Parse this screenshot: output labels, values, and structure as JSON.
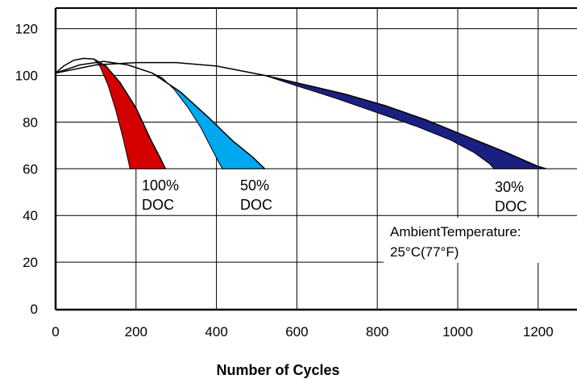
{
  "chart_data": {
    "type": "area",
    "title": "",
    "xlabel": "Number of Cycles",
    "ylabel": "",
    "xlim": [
      0,
      1300
    ],
    "ylim": [
      0,
      120
    ],
    "xticks": [
      0,
      200,
      400,
      600,
      800,
      1000,
      1200
    ],
    "yticks": [
      0,
      20,
      40,
      60,
      80,
      100,
      120
    ],
    "grid": true,
    "bands": [
      {
        "label": "100%\nDOC",
        "color": "#d40000",
        "upper": [
          [
            0,
            101
          ],
          [
            20,
            104
          ],
          [
            45,
            106.5
          ],
          [
            70,
            107.3
          ],
          [
            95,
            107
          ],
          [
            125,
            104
          ],
          [
            160,
            97
          ],
          [
            200,
            86
          ],
          [
            235,
            73
          ],
          [
            262,
            64
          ],
          [
            273,
            60
          ]
        ],
        "lower": [
          [
            95,
            107
          ],
          [
            110,
            104
          ],
          [
            130,
            96
          ],
          [
            150,
            85
          ],
          [
            168,
            73
          ],
          [
            180,
            64
          ],
          [
            185,
            60
          ]
        ]
      },
      {
        "label": "50%\nDOC",
        "color": "#00a8f0",
        "upper": [
          [
            0,
            101
          ],
          [
            60,
            104.5
          ],
          [
            120,
            106
          ],
          [
            180,
            104.5
          ],
          [
            240,
            101
          ],
          [
            310,
            93
          ],
          [
            380,
            82
          ],
          [
            440,
            72
          ],
          [
            490,
            65
          ],
          [
            520,
            60
          ]
        ],
        "lower": [
          [
            240,
            101
          ],
          [
            265,
            99
          ],
          [
            295,
            94
          ],
          [
            330,
            86
          ],
          [
            360,
            78
          ],
          [
            390,
            68
          ],
          [
            408,
            62
          ],
          [
            415,
            60
          ]
        ]
      },
      {
        "label": "30%\nDOC",
        "color": "#1a2080",
        "upper": [
          [
            0,
            101
          ],
          [
            100,
            104.5
          ],
          [
            200,
            105.5
          ],
          [
            300,
            105.5
          ],
          [
            400,
            104
          ],
          [
            520,
            100
          ],
          [
            620,
            96
          ],
          [
            720,
            92
          ],
          [
            820,
            87
          ],
          [
            920,
            81
          ],
          [
            1020,
            74
          ],
          [
            1120,
            67
          ],
          [
            1200,
            61
          ],
          [
            1220,
            60
          ]
        ],
        "lower": [
          [
            520,
            100
          ],
          [
            600,
            95.5
          ],
          [
            700,
            90
          ],
          [
            800,
            84
          ],
          [
            900,
            78
          ],
          [
            980,
            72.5
          ],
          [
            1040,
            67
          ],
          [
            1080,
            62
          ],
          [
            1090,
            60
          ]
        ]
      }
    ],
    "annotations": [
      "AmbientTemperature:",
      "25°C(77°F)"
    ],
    "colors": {
      "frame": "#000000",
      "grid": "#000000",
      "background": "#ffffff"
    }
  }
}
